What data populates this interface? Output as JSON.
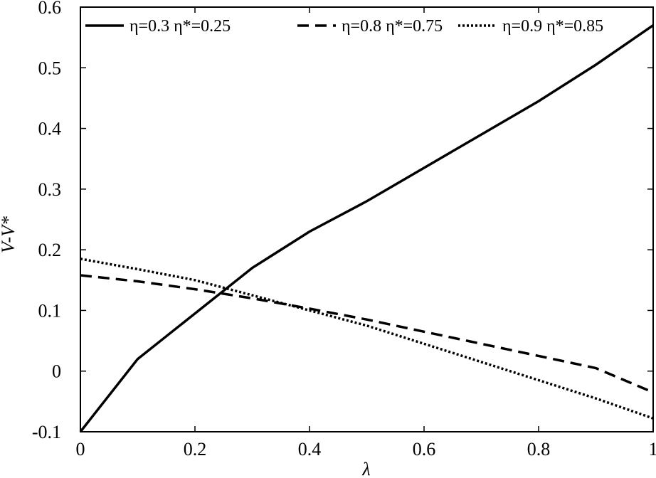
{
  "chart_data": {
    "type": "line",
    "xlabel": "λ",
    "ylabel": "V-V*",
    "xlim": [
      0,
      1
    ],
    "ylim": [
      -0.1,
      0.6
    ],
    "xticks": [
      "0",
      "0.2",
      "0.4",
      "0.6",
      "0.8",
      "1"
    ],
    "yticks": [
      "-0.1",
      "0",
      "0.1",
      "0.2",
      "0.3",
      "0.4",
      "0.5",
      "0.6"
    ],
    "grid": false,
    "legend_position": "top",
    "x": [
      0,
      0.1,
      0.2,
      0.3,
      0.4,
      0.5,
      0.6,
      0.7,
      0.8,
      0.9,
      1.0
    ],
    "series": [
      {
        "name": "η=0.3  η*=0.25",
        "style": "solid",
        "values": [
          -0.1,
          0.02,
          0.095,
          0.17,
          0.23,
          0.28,
          0.335,
          0.39,
          0.445,
          0.505,
          0.57
        ]
      },
      {
        "name": "η=0.8  η*=0.75",
        "style": "dashed",
        "values": [
          0.158,
          0.148,
          0.135,
          0.12,
          0.103,
          0.085,
          0.065,
          0.045,
          0.025,
          0.005,
          -0.035
        ]
      },
      {
        "name": "η=0.9  η*=0.85",
        "style": "dotted",
        "values": [
          0.185,
          0.168,
          0.15,
          0.125,
          0.1,
          0.075,
          0.045,
          0.015,
          -0.015,
          -0.045,
          -0.078
        ]
      }
    ]
  }
}
